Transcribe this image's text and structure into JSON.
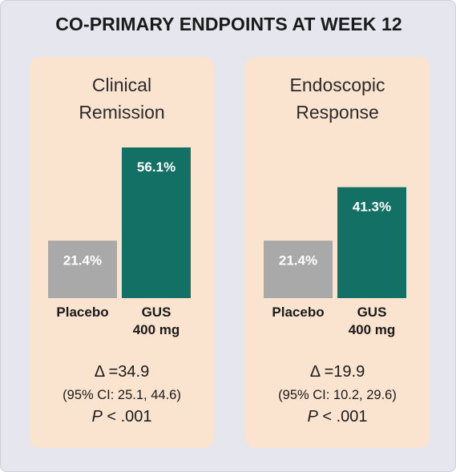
{
  "title": "CO-PRIMARY ENDPOINTS AT WEEK 12",
  "colors": {
    "placebo": "#a9a9a9",
    "gus": "#137065",
    "panel_bg": "#fae4cf",
    "page_bg": "#e6e6ef"
  },
  "chart_data": [
    {
      "type": "bar",
      "title": "Clinical\nRemission",
      "categories": [
        "Placebo",
        "GUS\n400 mg"
      ],
      "values": [
        21.4,
        56.1
      ],
      "data_labels": [
        "21.4%",
        "56.1%"
      ],
      "ylim": [
        0,
        56.1
      ],
      "grid": false,
      "stats": {
        "delta_symbol": "Δ",
        "delta_value": "34.9",
        "ci": "(95% CI: 25.1, 44.6)",
        "p_symbol": "P",
        "p_value": "< .001"
      }
    },
    {
      "type": "bar",
      "title": "Endoscopic\nResponse",
      "categories": [
        "Placebo",
        "GUS\n400 mg"
      ],
      "values": [
        21.4,
        41.3
      ],
      "data_labels": [
        "21.4%",
        "41.3%"
      ],
      "ylim": [
        0,
        56.1
      ],
      "grid": false,
      "stats": {
        "delta_symbol": "Δ",
        "delta_value": "19.9",
        "ci": "(95% CI: 10.2, 29.6)",
        "p_symbol": "P",
        "p_value": "< .001"
      }
    }
  ]
}
